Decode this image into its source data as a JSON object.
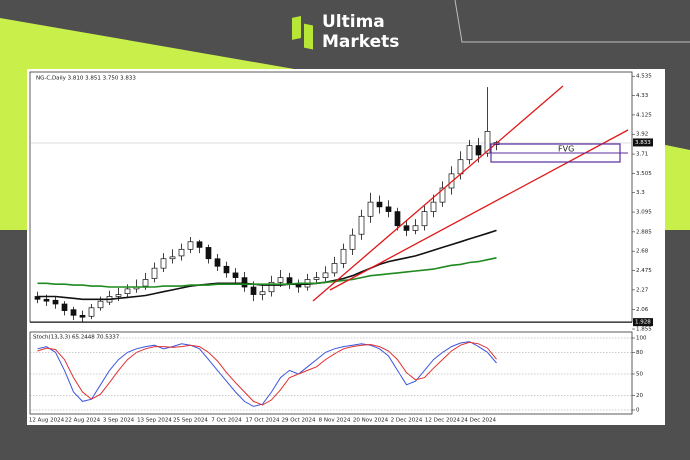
{
  "brand": {
    "line1": "Ultima",
    "line2": "Markets"
  },
  "chart_data": [
    {
      "type": "candlestick",
      "title": "NG-C,Daily 3.810 3.851 3.750 3.833",
      "categories": [
        null,
        "12 Aug 2024",
        null,
        null,
        null,
        "22 Aug 2024",
        null,
        null,
        null,
        "3 Sep 2024",
        null,
        null,
        null,
        "13 Sep 2024",
        null,
        null,
        null,
        "25 Sep 2024",
        null,
        null,
        null,
        "7 Oct 2024",
        null,
        null,
        null,
        "17 Oct 2024",
        null,
        null,
        null,
        "29 Oct 2024",
        null,
        null,
        null,
        "8 Nov 2024",
        null,
        null,
        null,
        "20 Nov 2024",
        null,
        null,
        null,
        "2 Dec 2024",
        null,
        null,
        null,
        "12 Dec 2024",
        null,
        null,
        null,
        "24 Dec 2024",
        null,
        null
      ],
      "open": [
        2.2,
        2.17,
        2.16,
        2.12,
        2.06,
        2.0,
        1.99,
        2.08,
        2.14,
        2.2,
        2.23,
        2.28,
        2.31,
        2.39,
        2.5,
        2.6,
        2.63,
        2.7,
        2.78,
        2.72,
        2.6,
        2.52,
        2.45,
        2.4,
        2.3,
        2.22,
        2.25,
        2.35,
        2.4,
        2.33,
        2.3,
        2.38,
        2.4,
        2.45,
        2.55,
        2.7,
        2.86,
        3.05,
        3.2,
        3.15,
        3.1,
        2.95,
        2.9,
        2.95,
        3.1,
        3.2,
        3.35,
        3.5,
        3.65,
        3.8,
        3.72,
        3.81
      ],
      "high": [
        2.25,
        2.22,
        2.2,
        2.15,
        2.09,
        2.05,
        2.12,
        2.2,
        2.26,
        2.29,
        2.33,
        2.38,
        2.45,
        2.56,
        2.66,
        2.7,
        2.76,
        2.83,
        2.8,
        2.75,
        2.65,
        2.57,
        2.5,
        2.46,
        2.36,
        2.32,
        2.42,
        2.48,
        2.45,
        2.38,
        2.44,
        2.46,
        2.52,
        2.62,
        2.76,
        2.92,
        3.12,
        3.3,
        3.27,
        3.22,
        3.14,
        3.0,
        3.02,
        3.16,
        3.28,
        3.42,
        3.58,
        3.74,
        3.86,
        3.88,
        4.42,
        3.851
      ],
      "low": [
        2.13,
        2.1,
        2.07,
        2.0,
        1.95,
        1.93,
        1.96,
        2.05,
        2.11,
        2.15,
        2.19,
        2.24,
        2.27,
        2.35,
        2.46,
        2.55,
        2.58,
        2.66,
        2.66,
        2.55,
        2.47,
        2.4,
        2.34,
        2.25,
        2.15,
        2.16,
        2.2,
        2.3,
        2.28,
        2.24,
        2.26,
        2.33,
        2.36,
        2.41,
        2.5,
        2.64,
        2.8,
        2.98,
        3.08,
        3.04,
        2.9,
        2.84,
        2.86,
        2.9,
        3.04,
        3.15,
        3.28,
        3.44,
        3.6,
        3.62,
        3.68,
        3.75
      ],
      "close": [
        2.17,
        2.15,
        2.12,
        2.05,
        2.0,
        1.98,
        2.08,
        2.15,
        2.2,
        2.22,
        2.28,
        2.3,
        2.38,
        2.5,
        2.6,
        2.62,
        2.7,
        2.78,
        2.72,
        2.6,
        2.52,
        2.45,
        2.4,
        2.3,
        2.22,
        2.25,
        2.35,
        2.4,
        2.33,
        2.3,
        2.38,
        2.4,
        2.45,
        2.55,
        2.7,
        2.85,
        3.05,
        3.2,
        3.15,
        3.1,
        2.95,
        2.9,
        2.95,
        3.1,
        3.2,
        3.35,
        3.5,
        3.65,
        3.8,
        3.7,
        3.95,
        3.833
      ],
      "series": [
        {
          "color": "#111111",
          "values": [
            2.2,
            2.2,
            2.2,
            2.19,
            2.18,
            2.17,
            2.17,
            2.17,
            2.17,
            2.18,
            2.19,
            2.2,
            2.21,
            2.23,
            2.25,
            2.27,
            2.29,
            2.31,
            2.32,
            2.33,
            2.34,
            2.34,
            2.34,
            2.34,
            2.33,
            2.32,
            2.32,
            2.32,
            2.33,
            2.33,
            2.33,
            2.34,
            2.35,
            2.37,
            2.39,
            2.42,
            2.46,
            2.5,
            2.54,
            2.57,
            2.59,
            2.61,
            2.63,
            2.66,
            2.69,
            2.72,
            2.75,
            2.78,
            2.81,
            2.84,
            2.87,
            2.9
          ]
        },
        {
          "color": "#1f8a1f",
          "values": [
            2.34,
            2.34,
            2.33,
            2.33,
            2.32,
            2.32,
            2.31,
            2.31,
            2.3,
            2.3,
            2.3,
            2.3,
            2.3,
            2.3,
            2.31,
            2.31,
            2.31,
            2.32,
            2.32,
            2.32,
            2.33,
            2.33,
            2.33,
            2.33,
            2.33,
            2.33,
            2.33,
            2.33,
            2.33,
            2.34,
            2.34,
            2.34,
            2.35,
            2.36,
            2.37,
            2.38,
            2.4,
            2.42,
            2.43,
            2.44,
            2.45,
            2.46,
            2.47,
            2.48,
            2.49,
            2.51,
            2.53,
            2.54,
            2.56,
            2.57,
            2.59,
            2.61
          ]
        }
      ],
      "ylim": [
        1.855,
        4.58
      ],
      "yticks": [
        4.535,
        4.33,
        4.125,
        3.92,
        3.71,
        3.505,
        3.3,
        3.095,
        2.885,
        2.68,
        2.475,
        2.27,
        2.06,
        1.855
      ],
      "low_marker": 1.928,
      "annotations": [
        "FVG"
      ]
    },
    {
      "type": "line",
      "title": "Stoch(13,3,3) 65.2448 70.5337",
      "series": [
        {
          "color": "#3a55e0",
          "values": [
            85,
            88,
            80,
            55,
            25,
            12,
            15,
            35,
            55,
            70,
            80,
            85,
            88,
            90,
            85,
            88,
            92,
            90,
            85,
            70,
            55,
            40,
            25,
            12,
            5,
            8,
            25,
            45,
            55,
            50,
            60,
            70,
            80,
            85,
            88,
            90,
            92,
            90,
            85,
            75,
            55,
            35,
            40,
            55,
            70,
            80,
            88,
            93,
            95,
            88,
            80,
            65.2448
          ]
        },
        {
          "color": "#e03030",
          "values": [
            82,
            86,
            84,
            70,
            45,
            25,
            15,
            22,
            38,
            55,
            70,
            80,
            85,
            88,
            88,
            87,
            88,
            90,
            88,
            80,
            68,
            52,
            38,
            25,
            12,
            7,
            14,
            28,
            45,
            50,
            55,
            60,
            70,
            78,
            85,
            88,
            90,
            91,
            88,
            82,
            70,
            52,
            42,
            45,
            58,
            70,
            82,
            90,
            94,
            92,
            86,
            70.5337
          ]
        }
      ],
      "ylim": [
        0,
        100
      ],
      "yticks": [
        100,
        80,
        50,
        20,
        0
      ]
    }
  ]
}
